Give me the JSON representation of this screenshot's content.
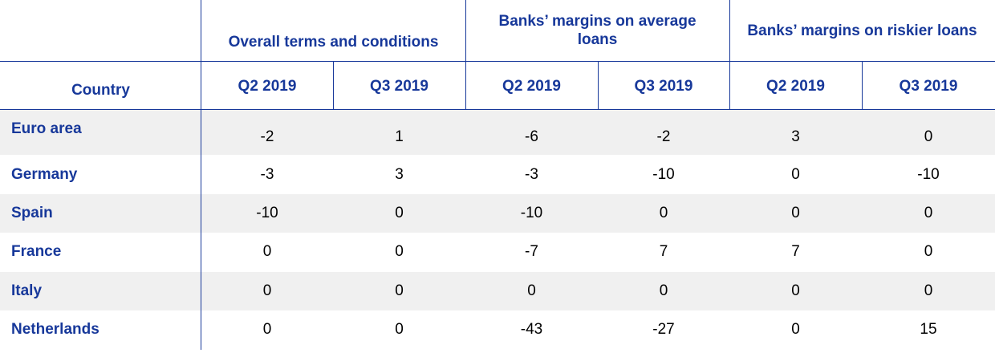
{
  "table": {
    "country_header": "Country",
    "groups": [
      {
        "label": "Overall terms and conditions"
      },
      {
        "label": "Banks’ margins on average loans"
      },
      {
        "label": "Banks’ margins on riskier loans"
      }
    ],
    "quarters": [
      "Q2 2019",
      "Q3 2019",
      "Q2 2019",
      "Q3 2019",
      "Q2 2019",
      "Q3 2019"
    ],
    "rows": [
      {
        "country": "Euro area",
        "values": [
          "-2",
          "1",
          "-6",
          "-2",
          "3",
          "0"
        ]
      },
      {
        "country": "Germany",
        "values": [
          "-3",
          "3",
          "-3",
          "-10",
          "0",
          "-10"
        ]
      },
      {
        "country": "Spain",
        "values": [
          "-10",
          "0",
          "-10",
          "0",
          "0",
          "0"
        ]
      },
      {
        "country": "France",
        "values": [
          "0",
          "0",
          "-7",
          "7",
          "7",
          "0"
        ]
      },
      {
        "country": "Italy",
        "values": [
          "0",
          "0",
          "0",
          "0",
          "0",
          "0"
        ]
      },
      {
        "country": "Netherlands",
        "values": [
          "0",
          "0",
          "-43",
          "-27",
          "0",
          "15"
        ]
      }
    ]
  }
}
